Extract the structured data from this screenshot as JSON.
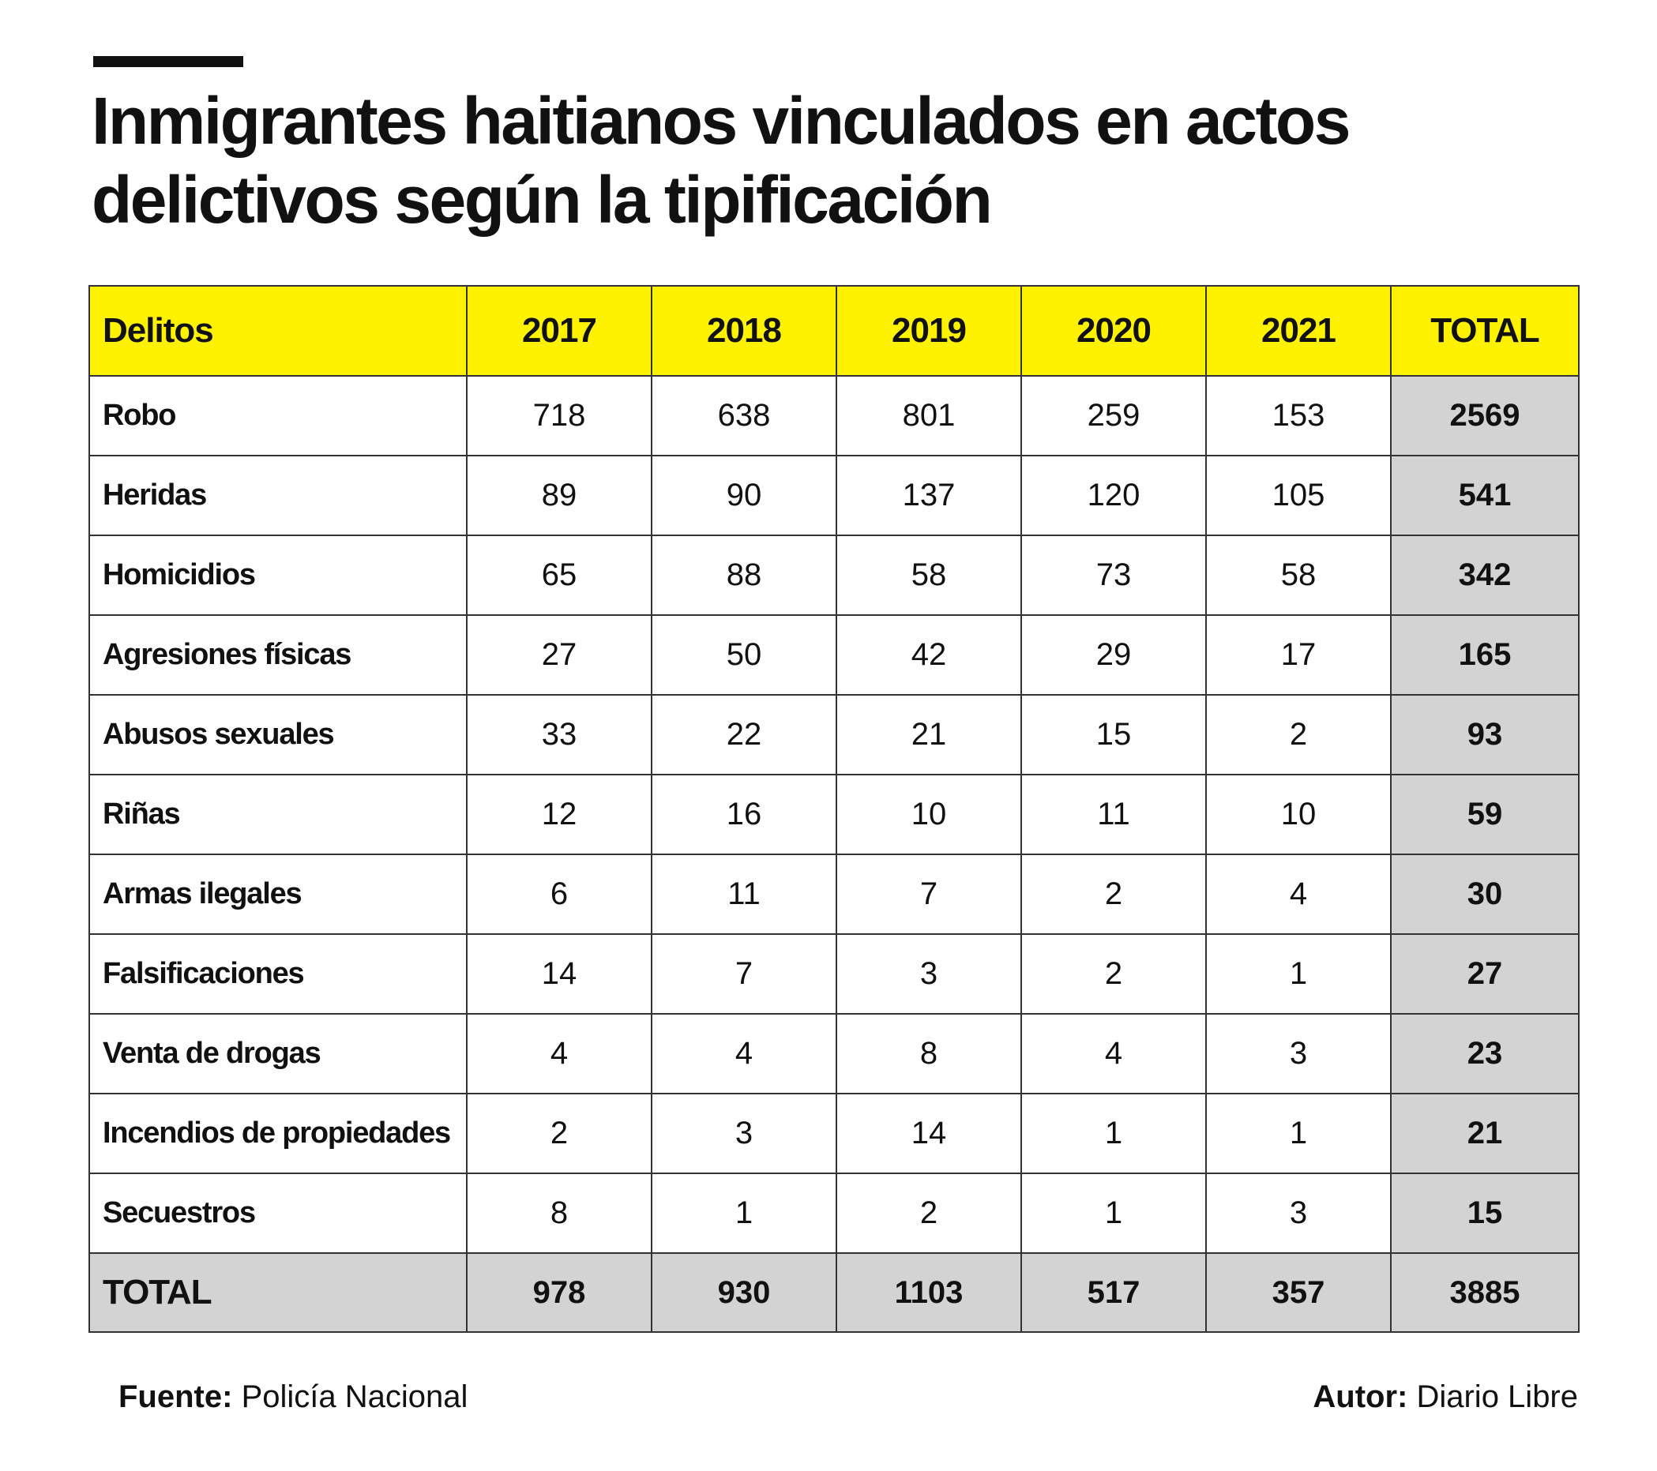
{
  "title": {
    "line1": "Inmigrantes haitianos vinculados en actos",
    "line2": "delictivos según la tipificación"
  },
  "colors": {
    "header_background": "#fff200",
    "total_background": "#d3d3d3",
    "text": "#111111",
    "grid": "#333333"
  },
  "chart_data": {
    "type": "table",
    "title": "Inmigrantes haitianos vinculados en actos delictivos según la tipificación",
    "columns": [
      "Delitos",
      "2017",
      "2018",
      "2019",
      "2020",
      "2021",
      "TOTAL"
    ],
    "rows": [
      {
        "label": "Robo",
        "values": [
          "718",
          "638",
          "801",
          "259",
          "153"
        ],
        "total": "2569"
      },
      {
        "label": "Heridas",
        "values": [
          "89",
          "90",
          "137",
          "120",
          "105"
        ],
        "total": "541"
      },
      {
        "label": "Homicidios",
        "values": [
          "65",
          "88",
          "58",
          "73",
          "58"
        ],
        "total": "342"
      },
      {
        "label": "Agresiones físicas",
        "values": [
          "27",
          "50",
          "42",
          "29",
          "17"
        ],
        "total": "165"
      },
      {
        "label": "Abusos sexuales",
        "values": [
          "33",
          "22",
          "21",
          "15",
          "2"
        ],
        "total": "93"
      },
      {
        "label": "Riñas",
        "values": [
          "12",
          "16",
          "10",
          "11",
          "10"
        ],
        "total": "59"
      },
      {
        "label": "Armas ilegales",
        "values": [
          "6",
          "11",
          "7",
          "2",
          "4"
        ],
        "total": "30"
      },
      {
        "label": "Falsificaciones",
        "values": [
          "14",
          "7",
          "3",
          "2",
          "1"
        ],
        "total": "27"
      },
      {
        "label": "Venta de drogas",
        "values": [
          "4",
          "4",
          "8",
          "4",
          "3"
        ],
        "total": "23"
      },
      {
        "label": "Incendios de propiedades",
        "values": [
          "2",
          "3",
          "14",
          "1",
          "1"
        ],
        "total": "21"
      },
      {
        "label": "Secuestros",
        "values": [
          "8",
          "1",
          "2",
          "1",
          "3"
        ],
        "total": "15"
      }
    ],
    "totals_row": {
      "label": "TOTAL",
      "values": [
        "978",
        "930",
        "1103",
        "517",
        "357"
      ],
      "total": "3885"
    }
  },
  "footer": {
    "source_label": "Fuente:",
    "source_value": "Policía Nacional",
    "author_label": "Autor:",
    "author_value": "Diario Libre"
  }
}
